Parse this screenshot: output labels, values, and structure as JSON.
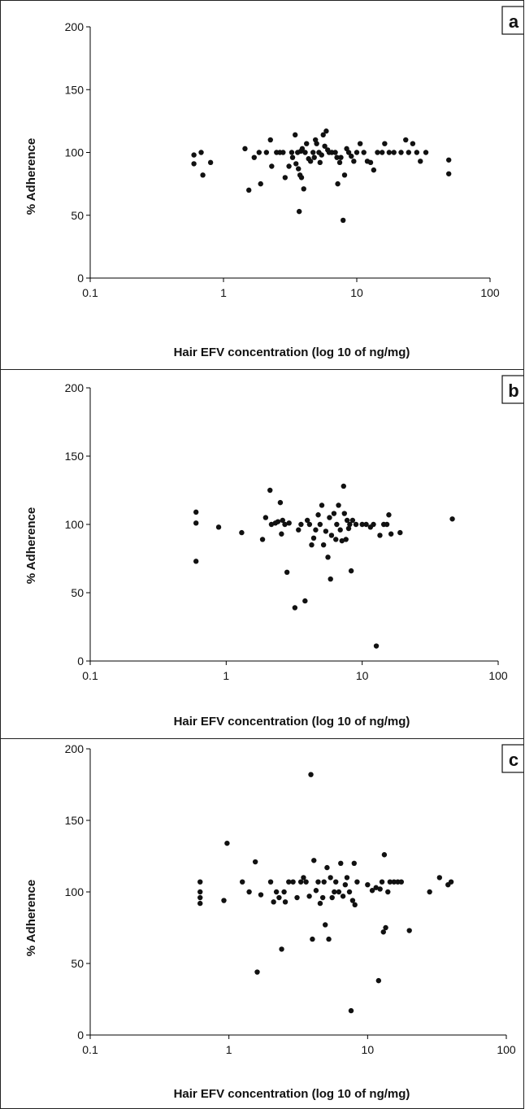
{
  "figure": {
    "axes_x_label": "Hair EFV concentration (log 10 of ng/mg)",
    "axes_y_label": "% Adherence"
  },
  "chart_data": [
    {
      "type": "scatter",
      "panel_label": "a",
      "xlabel": "Hair EFV concentration (log 10 of ng/mg)",
      "ylabel": "% Adherence",
      "x_scale": "log",
      "xlim": [
        0.1,
        100
      ],
      "ylim": [
        0,
        200
      ],
      "x_ticks": [
        "0.1",
        "1",
        "10",
        "100"
      ],
      "y_ticks": [
        "0",
        "50",
        "100",
        "150",
        "200"
      ],
      "grid": false,
      "points": [
        [
          0.6,
          98
        ],
        [
          0.6,
          91
        ],
        [
          0.68,
          100
        ],
        [
          0.7,
          82
        ],
        [
          0.8,
          92
        ],
        [
          1.45,
          103
        ],
        [
          1.55,
          70
        ],
        [
          1.7,
          96
        ],
        [
          1.85,
          100
        ],
        [
          1.9,
          75
        ],
        [
          2.1,
          100
        ],
        [
          2.25,
          110
        ],
        [
          2.3,
          89
        ],
        [
          2.5,
          100
        ],
        [
          2.65,
          100
        ],
        [
          2.8,
          100
        ],
        [
          2.9,
          80
        ],
        [
          3.1,
          89
        ],
        [
          3.25,
          100
        ],
        [
          3.3,
          96
        ],
        [
          3.45,
          114
        ],
        [
          3.5,
          91
        ],
        [
          3.6,
          100
        ],
        [
          3.65,
          87
        ],
        [
          3.7,
          53
        ],
        [
          3.75,
          82
        ],
        [
          3.8,
          101
        ],
        [
          3.85,
          80
        ],
        [
          3.9,
          103
        ],
        [
          4.0,
          71
        ],
        [
          4.1,
          100
        ],
        [
          4.2,
          107
        ],
        [
          4.35,
          95
        ],
        [
          4.5,
          93
        ],
        [
          4.7,
          100
        ],
        [
          4.8,
          96
        ],
        [
          4.9,
          110
        ],
        [
          5.0,
          107
        ],
        [
          5.2,
          100
        ],
        [
          5.3,
          92
        ],
        [
          5.45,
          98
        ],
        [
          5.6,
          114
        ],
        [
          5.75,
          105
        ],
        [
          5.9,
          117
        ],
        [
          6.05,
          102
        ],
        [
          6.2,
          100
        ],
        [
          6.5,
          100
        ],
        [
          6.9,
          100
        ],
        [
          7.1,
          96
        ],
        [
          7.2,
          75
        ],
        [
          7.45,
          92
        ],
        [
          7.6,
          96
        ],
        [
          7.9,
          46
        ],
        [
          8.1,
          82
        ],
        [
          8.4,
          103
        ],
        [
          8.7,
          100
        ],
        [
          9.1,
          97
        ],
        [
          9.5,
          93
        ],
        [
          10.0,
          100
        ],
        [
          10.6,
          107
        ],
        [
          11.3,
          100
        ],
        [
          12.0,
          93
        ],
        [
          12.7,
          92
        ],
        [
          13.4,
          86
        ],
        [
          14.3,
          100
        ],
        [
          15.5,
          100
        ],
        [
          16.2,
          107
        ],
        [
          17.5,
          100
        ],
        [
          19.0,
          100
        ],
        [
          21.5,
          100
        ],
        [
          23.3,
          110
        ],
        [
          24.5,
          100
        ],
        [
          26.3,
          107
        ],
        [
          28.2,
          100
        ],
        [
          30.0,
          93
        ],
        [
          33.0,
          100
        ],
        [
          49.0,
          94
        ],
        [
          49.0,
          83
        ]
      ]
    },
    {
      "type": "scatter",
      "panel_label": "b",
      "xlabel": "Hair EFV concentration (log 10 of ng/mg)",
      "ylabel": "% Adherence",
      "x_scale": "log",
      "xlim": [
        0.1,
        100
      ],
      "ylim": [
        0,
        200
      ],
      "x_ticks": [
        "0.1",
        "1",
        "10",
        "100"
      ],
      "y_ticks": [
        "0",
        "50",
        "100",
        "150",
        "200"
      ],
      "grid": false,
      "points": [
        [
          0.6,
          109
        ],
        [
          0.6,
          101
        ],
        [
          0.6,
          73
        ],
        [
          0.88,
          98
        ],
        [
          1.3,
          94
        ],
        [
          1.85,
          89
        ],
        [
          1.95,
          105
        ],
        [
          2.1,
          125
        ],
        [
          2.15,
          100
        ],
        [
          2.3,
          101
        ],
        [
          2.4,
          102
        ],
        [
          2.5,
          116
        ],
        [
          2.55,
          93
        ],
        [
          2.6,
          103
        ],
        [
          2.7,
          100
        ],
        [
          2.8,
          65
        ],
        [
          2.9,
          101
        ],
        [
          3.2,
          39
        ],
        [
          3.4,
          96
        ],
        [
          3.55,
          100
        ],
        [
          3.8,
          44
        ],
        [
          3.95,
          103
        ],
        [
          4.1,
          100
        ],
        [
          4.25,
          85
        ],
        [
          4.4,
          90
        ],
        [
          4.55,
          96
        ],
        [
          4.75,
          107
        ],
        [
          4.9,
          100
        ],
        [
          5.05,
          114
        ],
        [
          5.2,
          85
        ],
        [
          5.4,
          95
        ],
        [
          5.6,
          76
        ],
        [
          5.75,
          105
        ],
        [
          5.85,
          60
        ],
        [
          5.95,
          92
        ],
        [
          6.2,
          108
        ],
        [
          6.4,
          89
        ],
        [
          6.5,
          100
        ],
        [
          6.7,
          114
        ],
        [
          6.9,
          96
        ],
        [
          7.1,
          88
        ],
        [
          7.3,
          128
        ],
        [
          7.4,
          108
        ],
        [
          7.6,
          89
        ],
        [
          7.75,
          103
        ],
        [
          7.95,
          97
        ],
        [
          8.1,
          100
        ],
        [
          8.3,
          66
        ],
        [
          8.5,
          103
        ],
        [
          9.0,
          100
        ],
        [
          10.0,
          100
        ],
        [
          10.7,
          100
        ],
        [
          11.5,
          98
        ],
        [
          12.1,
          100
        ],
        [
          12.7,
          11
        ],
        [
          13.5,
          92
        ],
        [
          14.4,
          100
        ],
        [
          15.2,
          100
        ],
        [
          15.7,
          107
        ],
        [
          16.3,
          93
        ],
        [
          19.0,
          94
        ],
        [
          46.0,
          104
        ]
      ]
    },
    {
      "type": "scatter",
      "panel_label": "c",
      "xlabel": "Hair EFV concentration (log 10 of ng/mg)",
      "ylabel": "% Adherence",
      "x_scale": "log",
      "xlim": [
        0.1,
        100
      ],
      "ylim": [
        0,
        200
      ],
      "x_ticks": [
        "0.1",
        "1",
        "10",
        "100"
      ],
      "y_ticks": [
        "0",
        "50",
        "100",
        "150",
        "200"
      ],
      "grid": false,
      "points": [
        [
          0.62,
          107
        ],
        [
          0.62,
          100
        ],
        [
          0.62,
          96
        ],
        [
          0.62,
          92
        ],
        [
          0.92,
          94
        ],
        [
          0.97,
          134
        ],
        [
          1.25,
          107
        ],
        [
          1.4,
          100
        ],
        [
          1.55,
          121
        ],
        [
          1.6,
          44
        ],
        [
          1.7,
          98
        ],
        [
          2.0,
          107
        ],
        [
          2.1,
          93
        ],
        [
          2.2,
          100
        ],
        [
          2.3,
          96
        ],
        [
          2.4,
          60
        ],
        [
          2.5,
          100
        ],
        [
          2.55,
          93
        ],
        [
          2.7,
          107
        ],
        [
          2.9,
          107
        ],
        [
          3.1,
          96
        ],
        [
          3.3,
          107
        ],
        [
          3.45,
          110
        ],
        [
          3.6,
          107
        ],
        [
          3.8,
          97
        ],
        [
          3.9,
          182
        ],
        [
          4.0,
          67
        ],
        [
          4.1,
          122
        ],
        [
          4.25,
          101
        ],
        [
          4.4,
          107
        ],
        [
          4.55,
          92
        ],
        [
          4.75,
          96
        ],
        [
          4.85,
          107
        ],
        [
          4.95,
          77
        ],
        [
          5.1,
          117
        ],
        [
          5.25,
          67
        ],
        [
          5.4,
          110
        ],
        [
          5.55,
          96
        ],
        [
          5.75,
          100
        ],
        [
          5.9,
          107
        ],
        [
          6.2,
          100
        ],
        [
          6.4,
          120
        ],
        [
          6.65,
          97
        ],
        [
          6.9,
          105
        ],
        [
          7.1,
          110
        ],
        [
          7.4,
          100
        ],
        [
          7.6,
          17
        ],
        [
          7.8,
          94
        ],
        [
          8.0,
          120
        ],
        [
          8.1,
          91
        ],
        [
          8.4,
          107
        ],
        [
          10.0,
          105
        ],
        [
          10.8,
          101
        ],
        [
          11.5,
          103
        ],
        [
          12.0,
          38
        ],
        [
          12.3,
          102
        ],
        [
          12.7,
          107
        ],
        [
          13.0,
          72
        ],
        [
          13.2,
          126
        ],
        [
          13.5,
          75
        ],
        [
          14.0,
          100
        ],
        [
          14.5,
          107
        ],
        [
          15.5,
          107
        ],
        [
          16.5,
          107
        ],
        [
          17.5,
          107
        ],
        [
          20.0,
          73
        ],
        [
          28.0,
          100
        ],
        [
          33.0,
          110
        ],
        [
          38.0,
          105
        ],
        [
          40.0,
          107
        ]
      ]
    }
  ]
}
